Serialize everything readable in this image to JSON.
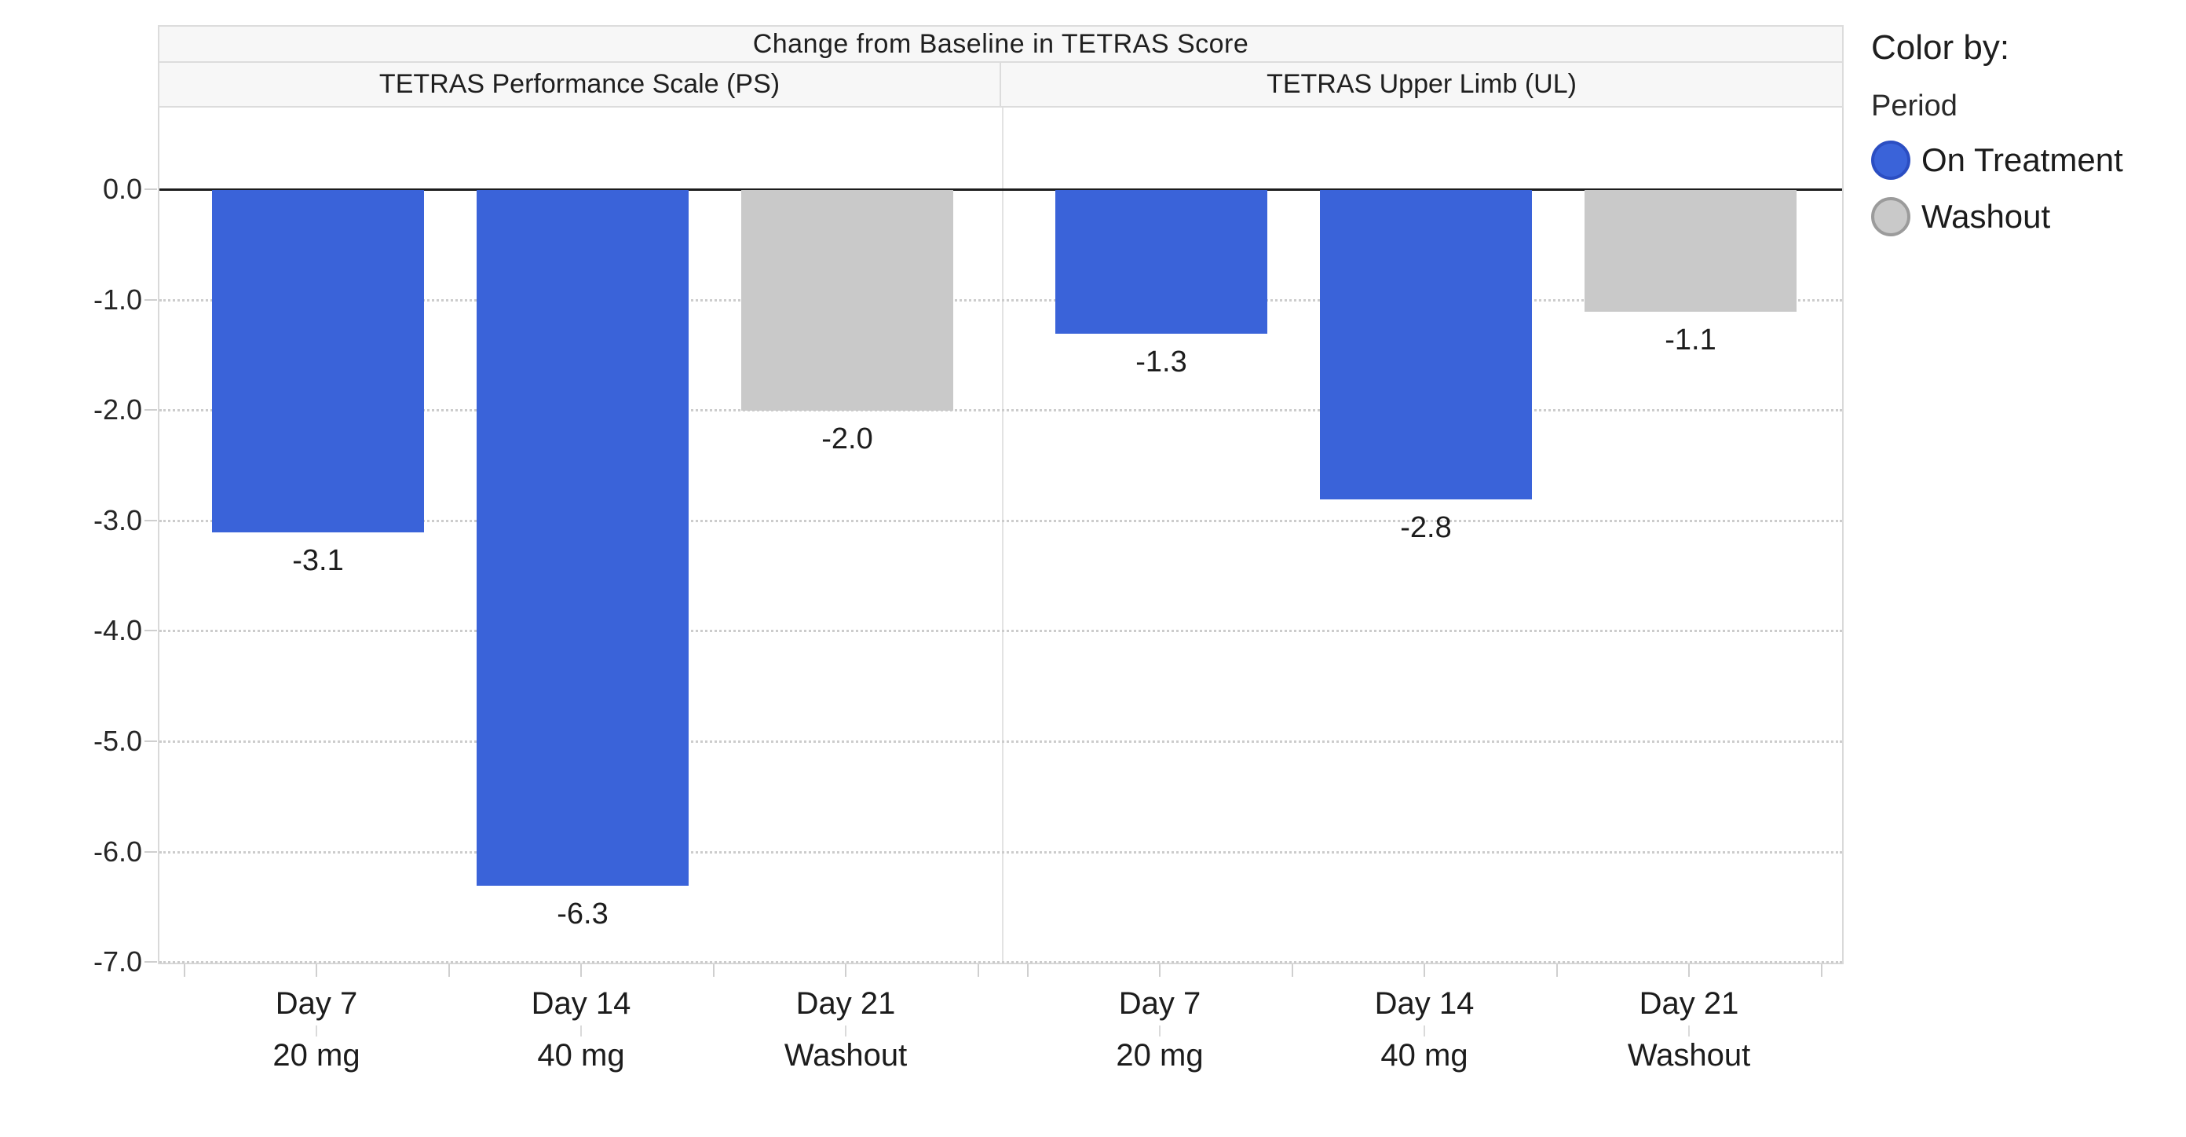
{
  "title": "Change from Baseline in TETRAS Score",
  "legend": {
    "heading": "Color by:",
    "field": "Period",
    "items": [
      {
        "label": "On Treatment",
        "fill": "#3A63D9",
        "ring": "#2B4EC2"
      },
      {
        "label": "Washout",
        "fill": "#C9C9C9",
        "ring": "#9B9B9B"
      }
    ]
  },
  "colors": {
    "zero_line": "#1c1c1c",
    "gridline": "#cccccc",
    "band_fill": "#f7f7f7",
    "band_border": "#dcdcdc",
    "axis_line": "#d9d9d9"
  },
  "y_axis": {
    "tick_labels": [
      "0.0",
      "-1.0",
      "-2.0",
      "-3.0",
      "-4.0",
      "-5.0",
      "-6.0",
      "-7.0"
    ],
    "tick_values": [
      0,
      -1,
      -2,
      -3,
      -4,
      -5,
      -6,
      -7
    ]
  },
  "chart_data": {
    "type": "bar",
    "title": "Change from Baseline in TETRAS Score",
    "xlabel": "",
    "ylabel": "",
    "ylim": [
      -7.03,
      0.74
    ],
    "grid": "horizontal-dotted",
    "legend_position": "right",
    "color_by": "Period",
    "panels": [
      {
        "label": "TETRAS Performance Scale (PS)",
        "bars": [
          {
            "day": "Day 7",
            "dose": "20 mg",
            "value": -3.1,
            "value_label": "-3.1",
            "period": "On Treatment"
          },
          {
            "day": "Day 14",
            "dose": "40 mg",
            "value": -6.3,
            "value_label": "-6.3",
            "period": "On Treatment"
          },
          {
            "day": "Day 21",
            "dose": "Washout",
            "value": -2.0,
            "value_label": "-2.0",
            "period": "Washout"
          }
        ]
      },
      {
        "label": "TETRAS Upper Limb (UL)",
        "bars": [
          {
            "day": "Day 7",
            "dose": "20 mg",
            "value": -1.3,
            "value_label": "-1.3",
            "period": "On Treatment"
          },
          {
            "day": "Day 14",
            "dose": "40 mg",
            "value": -2.8,
            "value_label": "-2.8",
            "period": "On Treatment"
          },
          {
            "day": "Day 21",
            "dose": "Washout",
            "value": -1.1,
            "value_label": "-1.1",
            "period": "Washout"
          }
        ]
      }
    ]
  }
}
